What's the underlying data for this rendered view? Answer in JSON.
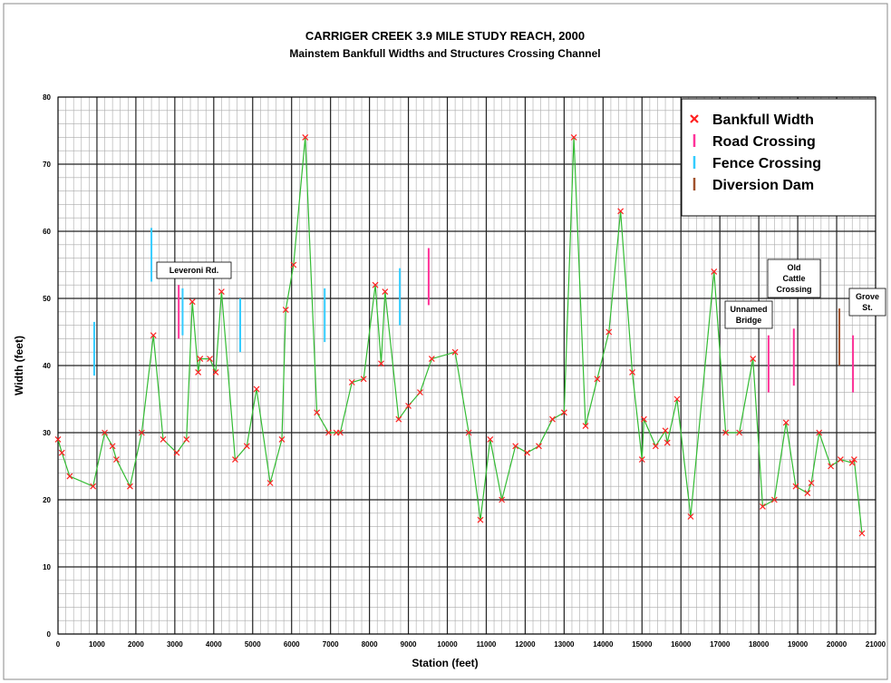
{
  "chart_data": {
    "type": "line",
    "title": "CARRIGER CREEK 3.9 MILE STUDY REACH, 2000",
    "subtitle": "Mainstem Bankfull Widths and Structures Crossing Channel",
    "xlabel": "Station (feet)",
    "ylabel": "Width (feet)",
    "xlim": [
      0,
      21000
    ],
    "ylim": [
      0,
      80
    ],
    "xticks": [
      0,
      1000,
      2000,
      3000,
      4000,
      5000,
      6000,
      7000,
      8000,
      9000,
      10000,
      11000,
      12000,
      13000,
      14000,
      15000,
      16000,
      17000,
      18000,
      19000,
      20000,
      21000
    ],
    "yticks": [
      0,
      10,
      20,
      30,
      40,
      50,
      60,
      70,
      80
    ],
    "xminor": 200,
    "yminor": 2,
    "grid": true,
    "legend": "upper right",
    "series": [
      {
        "name": "Bankfull Width",
        "color": "#ff2020",
        "line_color": "#33bb33",
        "x": [
          0,
          100,
          300,
          900,
          1200,
          1400,
          1500,
          1850,
          2150,
          2450,
          2700,
          3050,
          3300,
          3450,
          3600,
          3650,
          3900,
          4050,
          4200,
          4550,
          4850,
          5100,
          5450,
          5750,
          5850,
          6050,
          6350,
          6650,
          6950,
          7150,
          7250,
          7550,
          7850,
          8150,
          8300,
          8400,
          8750,
          9000,
          9300,
          9600,
          10200,
          10550,
          10850,
          11100,
          11400,
          11750,
          12050,
          12350,
          12700,
          13000,
          13250,
          13550,
          13850,
          14150,
          14450,
          14750,
          15000,
          15050,
          15350,
          15600,
          15650,
          15900,
          16250,
          16850,
          17150,
          17500,
          17850,
          18100,
          18400,
          18700,
          18950,
          19250,
          19350,
          19550,
          19850,
          20100,
          20400,
          20450,
          20650
        ],
        "values": [
          29,
          27,
          23.5,
          22,
          30,
          28,
          26,
          22,
          30,
          44.5,
          29,
          27,
          29,
          49.5,
          39,
          41,
          41,
          39,
          51,
          26,
          28,
          36.5,
          22.5,
          29,
          48.3,
          55,
          74,
          33,
          30,
          30,
          30,
          37.5,
          38,
          52,
          40.3,
          51,
          32,
          34,
          36,
          41,
          42,
          30,
          17,
          29,
          20,
          28,
          27,
          28,
          32,
          33,
          74,
          31,
          38,
          45,
          63,
          39,
          26,
          32,
          28,
          30.3,
          28.5,
          35,
          17.5,
          54,
          30,
          30,
          41,
          19,
          20,
          31.5,
          22,
          21,
          22.5,
          30,
          25,
          26,
          25.5,
          26,
          15
        ]
      }
    ],
    "crossings": [
      {
        "name": "Road Crossing",
        "color": "#ff3399",
        "x": [
          3100,
          9520,
          18250,
          18900,
          20420
        ],
        "low": [
          44,
          49,
          36,
          37,
          36
        ],
        "high": [
          52,
          57.5,
          44.5,
          45.5,
          44.5
        ]
      },
      {
        "name": "Fence Crossing",
        "color": "#33ccff",
        "x": [
          930,
          2400,
          3200,
          4680,
          6850,
          8780
        ],
        "low": [
          38.5,
          52.5,
          44.5,
          42,
          43.5,
          46
        ],
        "high": [
          46.5,
          60.5,
          51.5,
          50,
          51.5,
          54.5
        ]
      },
      {
        "name": "Diversion Dam",
        "color": "#a0522d",
        "x": [
          20070
        ],
        "low": [
          40
        ],
        "high": [
          48.5
        ]
      }
    ],
    "annotations": [
      [
        "Leveroni Rd."
      ],
      [
        "Unnamed",
        "Bridge"
      ],
      [
        "Old",
        "Cattle",
        "Crossing"
      ],
      [
        "Grove",
        "St."
      ]
    ]
  }
}
